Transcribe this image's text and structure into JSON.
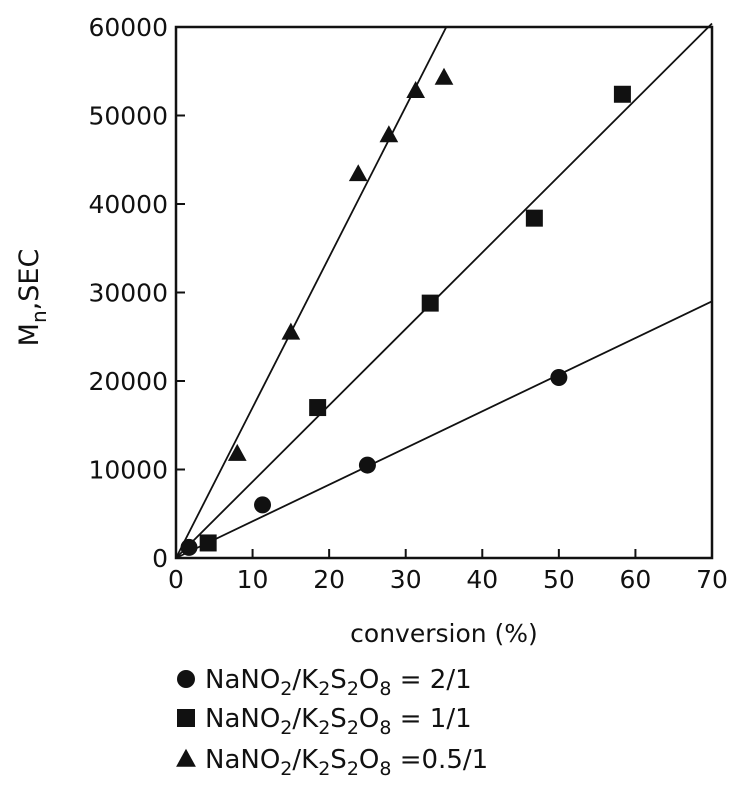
{
  "chart_data": {
    "type": "scatter",
    "xlabel": "conversion (%)",
    "ylabel": {
      "main": "M",
      "sub": "n",
      "rest": ",SEC"
    },
    "xlim": [
      0,
      70
    ],
    "ylim": [
      0,
      60000
    ],
    "xticks": [
      0,
      10,
      20,
      30,
      40,
      50,
      60,
      70
    ],
    "yticks": [
      0,
      10000,
      20000,
      30000,
      40000,
      50000,
      60000
    ],
    "series": [
      {
        "marker": "circle",
        "color": "#111111",
        "legend": {
          "prefix": "NaNO",
          "s1": "2",
          "mid1": "/K",
          "s2": "2",
          "mid2": "S",
          "s3": "2",
          "mid3": "O",
          "s4": "8",
          "suffix": " = 2/1"
        },
        "points": [
          [
            1.7,
            1200
          ],
          [
            11.3,
            6000
          ],
          [
            25,
            10500
          ],
          [
            50,
            20400
          ]
        ],
        "fit": {
          "x0": 0,
          "y0": 0,
          "x1": 70,
          "y1": 29000
        }
      },
      {
        "marker": "square",
        "color": "#111111",
        "legend": {
          "prefix": "NaNO",
          "s1": "2",
          "mid1": "/K",
          "s2": "2",
          "mid2": "S",
          "s3": "2",
          "mid3": "O",
          "s4": "8",
          "suffix": " = 1/1"
        },
        "points": [
          [
            4.2,
            1700
          ],
          [
            18.5,
            17000
          ],
          [
            33.2,
            28800
          ],
          [
            46.8,
            38400
          ],
          [
            58.3,
            52400
          ]
        ],
        "fit": {
          "x0": 0,
          "y0": 0,
          "x1": 70,
          "y1": 60400
        }
      },
      {
        "marker": "triangle",
        "color": "#111111",
        "legend": {
          "prefix": "NaNO",
          "s1": "2",
          "mid1": "/K",
          "s2": "2",
          "mid2": "S",
          "s3": "2",
          "mid3": "O",
          "s4": "8",
          "suffix": " =0.5/1"
        },
        "points": [
          [
            8,
            11800
          ],
          [
            15,
            25500
          ],
          [
            23.8,
            43400
          ],
          [
            27.8,
            47800
          ],
          [
            31.3,
            52800
          ],
          [
            35,
            54300
          ]
        ],
        "fit": {
          "x0": 0,
          "y0": 0,
          "x1": 35.3,
          "y1": 60000
        }
      }
    ]
  }
}
